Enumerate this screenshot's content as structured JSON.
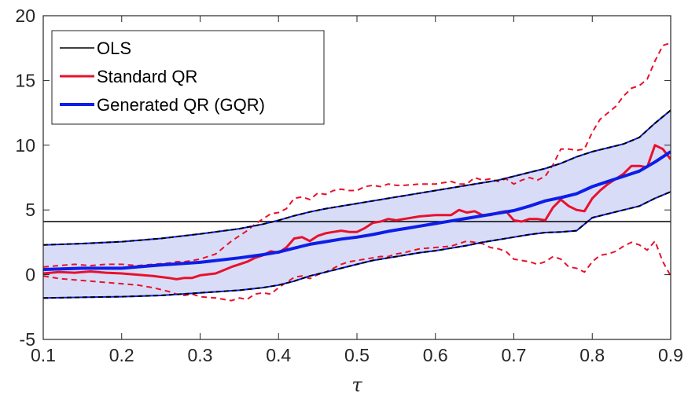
{
  "chart_data": {
    "type": "line",
    "xlabel": "τ",
    "ylabel": "",
    "xlim": [
      0.1,
      0.9
    ],
    "ylim": [
      -5,
      20
    ],
    "x_ticks": [
      "0.1",
      "0.2",
      "0.3",
      "0.4",
      "0.5",
      "0.6",
      "0.7",
      "0.8",
      "0.9"
    ],
    "y_ticks": [
      "-5",
      "0",
      "5",
      "10",
      "15",
      "20"
    ],
    "grid": false,
    "legend_position": "top-left",
    "legend": [
      {
        "label": "OLS",
        "color": "#000000"
      },
      {
        "label": "Standard QR",
        "color": "#e8112d"
      },
      {
        "label": "Generated QR (GQR)",
        "color": "#0d1ee8"
      }
    ],
    "ols": {
      "name": "OLS",
      "value": 4.1,
      "color": "#000000"
    },
    "standard_qr": {
      "name": "Standard QR",
      "color": "#e8112d",
      "x": [
        0.1,
        0.12,
        0.14,
        0.16,
        0.18,
        0.2,
        0.22,
        0.24,
        0.26,
        0.27,
        0.28,
        0.29,
        0.3,
        0.32,
        0.34,
        0.35,
        0.36,
        0.37,
        0.38,
        0.39,
        0.4,
        0.41,
        0.42,
        0.43,
        0.44,
        0.45,
        0.46,
        0.47,
        0.48,
        0.49,
        0.5,
        0.51,
        0.52,
        0.53,
        0.54,
        0.55,
        0.56,
        0.58,
        0.6,
        0.62,
        0.63,
        0.64,
        0.65,
        0.66,
        0.67,
        0.68,
        0.69,
        0.7,
        0.71,
        0.72,
        0.73,
        0.74,
        0.75,
        0.76,
        0.77,
        0.78,
        0.79,
        0.8,
        0.81,
        0.82,
        0.83,
        0.84,
        0.85,
        0.86,
        0.87,
        0.88,
        0.89,
        0.9
      ],
      "y": [
        0.1,
        0.2,
        0.15,
        0.25,
        0.15,
        0.1,
        0.0,
        -0.1,
        -0.25,
        -0.35,
        -0.25,
        -0.25,
        -0.05,
        0.1,
        0.6,
        0.8,
        1.0,
        1.3,
        1.5,
        1.8,
        1.7,
        2.1,
        2.8,
        2.9,
        2.6,
        3.0,
        3.2,
        3.3,
        3.4,
        3.3,
        3.3,
        3.6,
        4.0,
        4.1,
        4.3,
        4.2,
        4.3,
        4.5,
        4.6,
        4.6,
        5.0,
        4.8,
        4.9,
        4.6,
        4.6,
        4.8,
        4.9,
        4.2,
        4.1,
        4.3,
        4.3,
        4.2,
        5.2,
        5.8,
        5.3,
        5.0,
        4.9,
        5.9,
        6.5,
        7.0,
        7.4,
        7.8,
        8.4,
        8.4,
        8.3,
        10.0,
        9.7,
        8.9
      ],
      "lower": [
        -0.1,
        -0.3,
        -0.4,
        -0.5,
        -0.6,
        -0.7,
        -0.8,
        -1.0,
        -1.3,
        -1.5,
        -1.6,
        -1.5,
        -1.7,
        -1.8,
        -2.0,
        -1.8,
        -1.9,
        -1.5,
        -1.4,
        -1.5,
        -1.0,
        -0.6,
        -0.2,
        -0.1,
        -0.3,
        0.0,
        0.2,
        0.5,
        0.8,
        1.0,
        1.1,
        1.2,
        1.3,
        1.4,
        1.4,
        1.6,
        1.7,
        2.0,
        2.1,
        2.2,
        2.4,
        2.6,
        2.5,
        2.4,
        2.1,
        2.0,
        1.8,
        1.2,
        1.1,
        1.0,
        0.8,
        1.0,
        1.4,
        1.2,
        0.6,
        0.5,
        0.2,
        1.0,
        1.5,
        1.6,
        1.8,
        2.2,
        2.5,
        2.3,
        1.9,
        2.6,
        1.0,
        -0.1
      ],
      "upper": [
        0.6,
        0.7,
        0.8,
        0.7,
        0.8,
        0.8,
        0.7,
        0.8,
        0.9,
        1.0,
        1.0,
        1.1,
        1.2,
        1.6,
        2.6,
        3.0,
        3.4,
        3.9,
        4.3,
        4.7,
        4.8,
        5.1,
        5.9,
        6.0,
        5.8,
        6.3,
        6.2,
        6.5,
        6.6,
        6.5,
        6.5,
        6.8,
        6.9,
        6.8,
        7.0,
        6.9,
        6.9,
        7.0,
        7.0,
        7.2,
        7.0,
        7.0,
        7.5,
        7.3,
        7.4,
        7.2,
        7.4,
        7.0,
        7.3,
        7.5,
        7.3,
        7.6,
        8.5,
        9.7,
        9.7,
        9.6,
        9.7,
        11.0,
        12.0,
        12.5,
        13.0,
        13.8,
        14.4,
        14.6,
        15.1,
        16.5,
        17.7,
        17.9
      ]
    },
    "generated_qr": {
      "name": "Generated QR (GQR)",
      "color": "#0d1ee8",
      "band_fill": "#d9dcf7",
      "x": [
        0.1,
        0.15,
        0.2,
        0.25,
        0.3,
        0.35,
        0.38,
        0.4,
        0.42,
        0.44,
        0.46,
        0.48,
        0.5,
        0.52,
        0.54,
        0.56,
        0.58,
        0.6,
        0.62,
        0.64,
        0.66,
        0.68,
        0.7,
        0.72,
        0.74,
        0.76,
        0.78,
        0.8,
        0.82,
        0.84,
        0.86,
        0.88,
        0.9
      ],
      "y": [
        0.4,
        0.5,
        0.5,
        0.75,
        0.95,
        1.3,
        1.55,
        1.75,
        2.05,
        2.35,
        2.55,
        2.75,
        2.9,
        3.1,
        3.35,
        3.55,
        3.75,
        3.95,
        4.15,
        4.35,
        4.55,
        4.75,
        4.95,
        5.3,
        5.7,
        5.95,
        6.25,
        6.8,
        7.2,
        7.6,
        8.0,
        8.7,
        9.5
      ],
      "lower": [
        -1.8,
        -1.75,
        -1.7,
        -1.6,
        -1.4,
        -1.2,
        -1.0,
        -0.8,
        -0.5,
        -0.1,
        0.2,
        0.5,
        0.8,
        1.1,
        1.3,
        1.5,
        1.7,
        1.85,
        2.05,
        2.25,
        2.5,
        2.7,
        2.9,
        3.1,
        3.25,
        3.3,
        3.4,
        4.4,
        4.7,
        5.0,
        5.3,
        5.9,
        6.4
      ],
      "upper": [
        2.3,
        2.4,
        2.55,
        2.8,
        3.15,
        3.55,
        3.9,
        4.2,
        4.55,
        4.85,
        5.1,
        5.3,
        5.5,
        5.7,
        5.9,
        6.1,
        6.3,
        6.5,
        6.7,
        6.9,
        7.1,
        7.3,
        7.6,
        7.9,
        8.2,
        8.6,
        9.1,
        9.5,
        9.8,
        10.1,
        10.6,
        11.7,
        12.7
      ]
    }
  }
}
